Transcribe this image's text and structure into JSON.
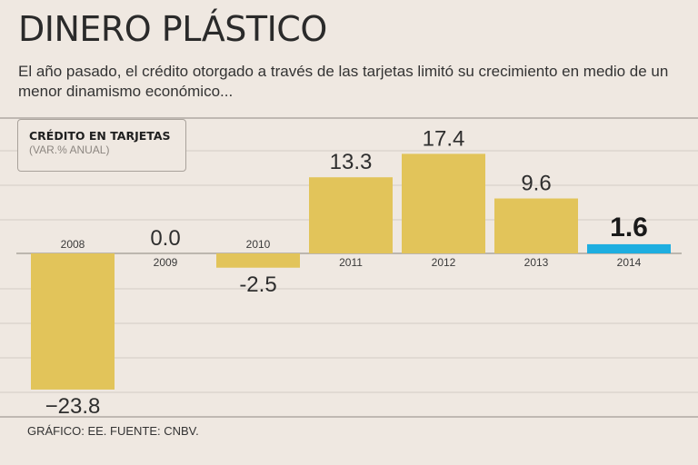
{
  "header": {
    "title": "DINERO PLÁSTICO",
    "subtitle": "El año pasado, el crédito otorgado a través de las tarjetas limitó su crecimiento en medio de un menor dinamismo económico..."
  },
  "legend": {
    "title": "CRÉDITO EN TARJETAS",
    "unit": "(VAR.% ANUAL)"
  },
  "footer": {
    "source": "GRÁFICO: EE. FUENTE: CNBV."
  },
  "colors": {
    "bar": "#e2c45a",
    "highlight": "#1eaee0",
    "background": "#efe8e1",
    "gridline": "#d3ccc5",
    "axis": "#9e9891"
  },
  "chart_data": {
    "type": "bar",
    "categories": [
      "2008",
      "2009",
      "2010",
      "2011",
      "2012",
      "2013",
      "2014"
    ],
    "values": [
      -23.8,
      0.0,
      -2.5,
      13.3,
      17.4,
      9.6,
      1.6
    ],
    "value_labels": [
      "−23.8",
      "0.0",
      "-2.5",
      "13.3",
      "17.4",
      "9.6",
      "1.6"
    ],
    "highlight_index": 6,
    "title": "CRÉDITO EN TARJETAS",
    "ylabel": "(VAR.% ANUAL)",
    "xlabel": "",
    "ylim": [
      -28,
      24
    ],
    "grid": true,
    "legend_position": "top-left"
  }
}
